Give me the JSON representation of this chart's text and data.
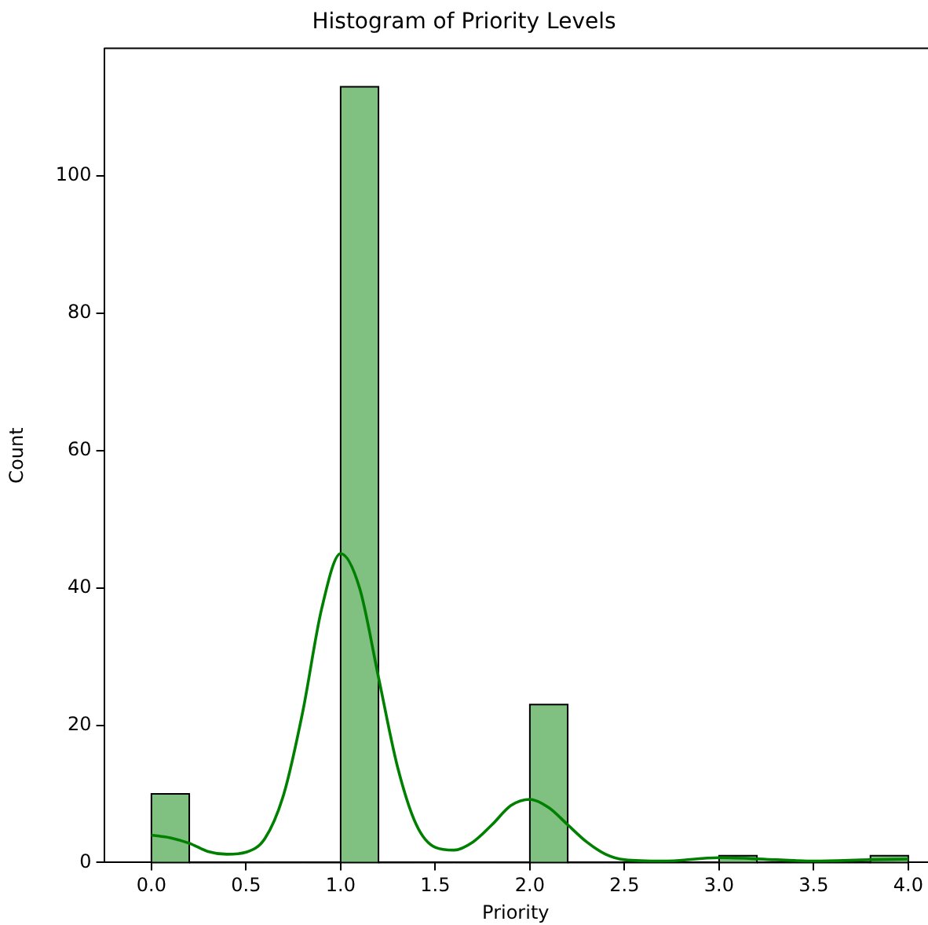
{
  "chart_data": {
    "type": "histogram",
    "title": "Histogram of Priority Levels",
    "xlabel": "Priority",
    "ylabel": "Count",
    "bins": [
      0,
      0.2,
      0.4,
      0.6,
      0.8,
      1.0,
      1.2,
      1.4,
      1.6,
      1.8,
      2.0,
      2.2,
      2.4,
      2.6,
      2.8,
      3.0,
      3.2,
      3.4,
      3.6,
      3.8,
      4.0
    ],
    "series": [
      {
        "color": "#80c080",
        "values": [
          10,
          0,
          0,
          0,
          0,
          113,
          0,
          0,
          0,
          0,
          23,
          0,
          0,
          0,
          0,
          1,
          0,
          0,
          0,
          1
        ]
      },
      {
        "type": "line",
        "color": "#008000",
        "x": [
          0,
          0.1,
          0.2,
          0.3,
          0.4,
          0.5,
          0.6,
          0.7,
          0.8,
          0.9,
          1.0,
          1.1,
          1.2,
          1.3,
          1.4,
          1.5,
          1.6,
          1.7,
          1.8,
          1.9,
          2.0,
          2.1,
          2.2,
          2.3,
          2.4,
          2.5,
          2.7,
          3.0,
          3.3,
          3.5,
          3.8,
          4.0
        ],
        "values": [
          4,
          3.6,
          2.8,
          1.6,
          1.2,
          1.5,
          3.5,
          10,
          22,
          37,
          45,
          40,
          27,
          14,
          5.5,
          2.2,
          1.8,
          3,
          5.5,
          8.3,
          9.2,
          8,
          5.5,
          3,
          1.2,
          0.4,
          0.2,
          0.7,
          0.4,
          0.2,
          0.4,
          0.5
        ]
      }
    ],
    "xlim": [
      -0.25,
      4.1
    ],
    "ylim": [
      0,
      118.6
    ],
    "xticks": [
      {
        "value": 0,
        "label": "0.0"
      },
      {
        "value": 0.5,
        "label": "0.5"
      },
      {
        "value": 1,
        "label": "1.0"
      },
      {
        "value": 1.5,
        "label": "1.5"
      },
      {
        "value": 2,
        "label": "2.0"
      },
      {
        "value": 2.5,
        "label": "2.5"
      },
      {
        "value": 3,
        "label": "3.0"
      },
      {
        "value": 3.5,
        "label": "3.5"
      },
      {
        "value": 4,
        "label": "4.0"
      }
    ],
    "yticks": [
      0,
      20,
      40,
      60,
      80,
      100
    ],
    "grid": false,
    "legend": false
  }
}
